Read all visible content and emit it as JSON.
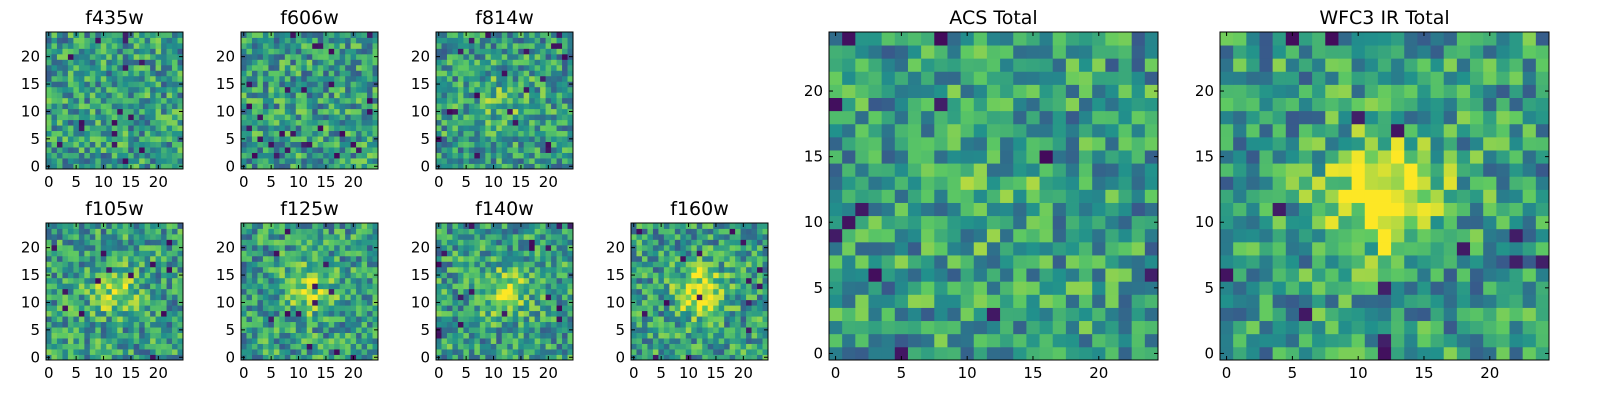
{
  "colors": {
    "colormap": [
      "#440154",
      "#3b528b",
      "#21918c",
      "#5ec962",
      "#fde725"
    ],
    "background": "#ffffff",
    "frame": "#000000"
  },
  "chart_data": [
    {
      "type": "heatmap",
      "title": "f435w",
      "grid": [
        25,
        25
      ],
      "xlim": [
        0,
        24
      ],
      "ylim": [
        0,
        24
      ],
      "xticks": [
        0,
        5,
        10,
        15,
        20
      ],
      "yticks": [
        0,
        5,
        10,
        15,
        20
      ],
      "seed": 11,
      "blob": 0.0,
      "dark": 0.03
    },
    {
      "type": "heatmap",
      "title": "f606w",
      "grid": [
        25,
        25
      ],
      "xlim": [
        0,
        24
      ],
      "ylim": [
        0,
        24
      ],
      "xticks": [
        0,
        5,
        10,
        15,
        20
      ],
      "yticks": [
        0,
        5,
        10,
        15,
        20
      ],
      "seed": 22,
      "blob": 0.0,
      "dark": 0.03
    },
    {
      "type": "heatmap",
      "title": "f814w",
      "grid": [
        25,
        25
      ],
      "xlim": [
        0,
        24
      ],
      "ylim": [
        0,
        24
      ],
      "xticks": [
        0,
        5,
        10,
        15,
        20
      ],
      "yticks": [
        0,
        5,
        10,
        15,
        20
      ],
      "seed": 33,
      "blob": 0.15,
      "dark": 0.03
    },
    {
      "type": "heatmap",
      "title": "f105w",
      "grid": [
        25,
        25
      ],
      "xlim": [
        0,
        24
      ],
      "ylim": [
        0,
        24
      ],
      "xticks": [
        0,
        5,
        10,
        15,
        20
      ],
      "yticks": [
        0,
        5,
        10,
        15,
        20
      ],
      "seed": 44,
      "blob": 0.3,
      "dark": 0.02
    },
    {
      "type": "heatmap",
      "title": "f125w",
      "grid": [
        25,
        25
      ],
      "xlim": [
        0,
        24
      ],
      "ylim": [
        0,
        24
      ],
      "xticks": [
        0,
        5,
        10,
        15,
        20
      ],
      "yticks": [
        0,
        5,
        10,
        15,
        20
      ],
      "seed": 55,
      "blob": 0.3,
      "dark": 0.02
    },
    {
      "type": "heatmap",
      "title": "f140w",
      "grid": [
        25,
        25
      ],
      "xlim": [
        0,
        24
      ],
      "ylim": [
        0,
        24
      ],
      "xticks": [
        0,
        5,
        10,
        15,
        20
      ],
      "yticks": [
        0,
        5,
        10,
        15,
        20
      ],
      "seed": 66,
      "blob": 0.35,
      "dark": 0.02
    },
    {
      "type": "heatmap",
      "title": "f160w",
      "grid": [
        25,
        25
      ],
      "xlim": [
        0,
        24
      ],
      "ylim": [
        0,
        24
      ],
      "xticks": [
        0,
        5,
        10,
        15,
        20
      ],
      "yticks": [
        0,
        5,
        10,
        15,
        20
      ],
      "seed": 77,
      "blob": 0.45,
      "dark": 0.02
    },
    {
      "type": "heatmap",
      "title": "ACS Total",
      "grid": [
        25,
        25
      ],
      "xlim": [
        0,
        24
      ],
      "ylim": [
        0,
        24
      ],
      "xticks": [
        0,
        5,
        10,
        15,
        20
      ],
      "yticks": [
        0,
        5,
        10,
        15,
        20
      ],
      "seed": 88,
      "blob": 0.1,
      "dark": 0.025
    },
    {
      "type": "heatmap",
      "title": "WFC3 IR Total",
      "grid": [
        25,
        25
      ],
      "xlim": [
        0,
        24
      ],
      "ylim": [
        0,
        24
      ],
      "xticks": [
        0,
        5,
        10,
        15,
        20
      ],
      "yticks": [
        0,
        5,
        10,
        15,
        20
      ],
      "seed": 99,
      "blob": 0.55,
      "dark": 0.02
    }
  ]
}
